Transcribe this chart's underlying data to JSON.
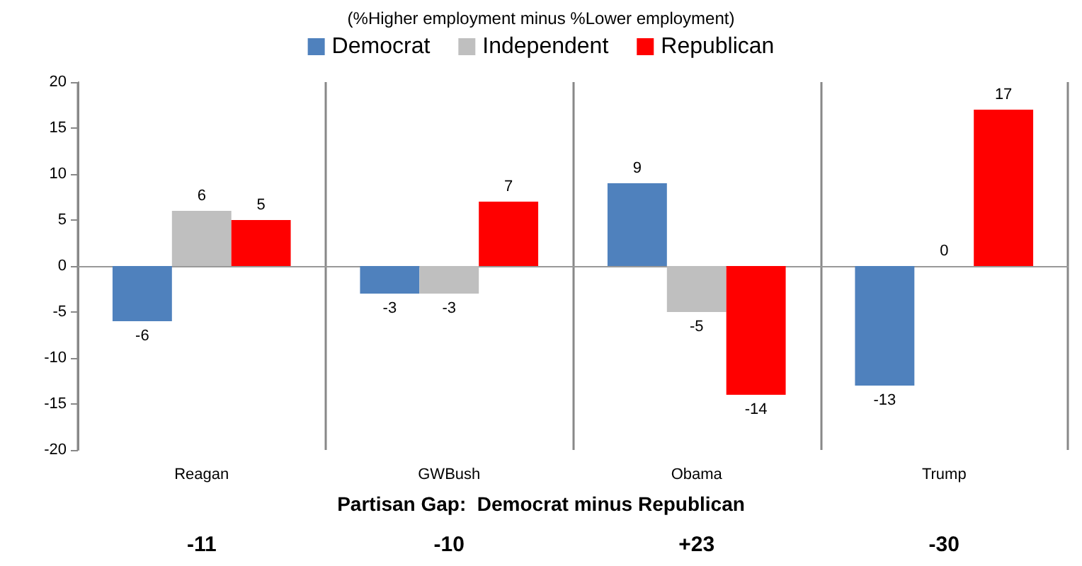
{
  "chart_data": {
    "type": "bar",
    "subtitle": "(%Higher employment minus %Lower employment)",
    "categories": [
      "Reagan",
      "GWBush",
      "Obama",
      "Trump"
    ],
    "series": [
      {
        "name": "Democrat",
        "color": "#4f81bd",
        "values": [
          -6,
          -3,
          9,
          -13
        ]
      },
      {
        "name": "Independent",
        "color": "#bfbfbf",
        "values": [
          6,
          -3,
          -5,
          0
        ]
      },
      {
        "name": "Republican",
        "color": "#ff0000",
        "values": [
          5,
          7,
          -14,
          17
        ]
      }
    ],
    "ylim": [
      -20,
      20
    ],
    "yticks": [
      -20,
      -15,
      -10,
      -5,
      0,
      5,
      10,
      15,
      20
    ],
    "grid": "x",
    "legend": "top",
    "data_labels": true,
    "annotations": [
      "Partisan Gap:  Democrat minus Republican",
      "-11",
      "-10",
      "+23",
      "-30"
    ]
  }
}
